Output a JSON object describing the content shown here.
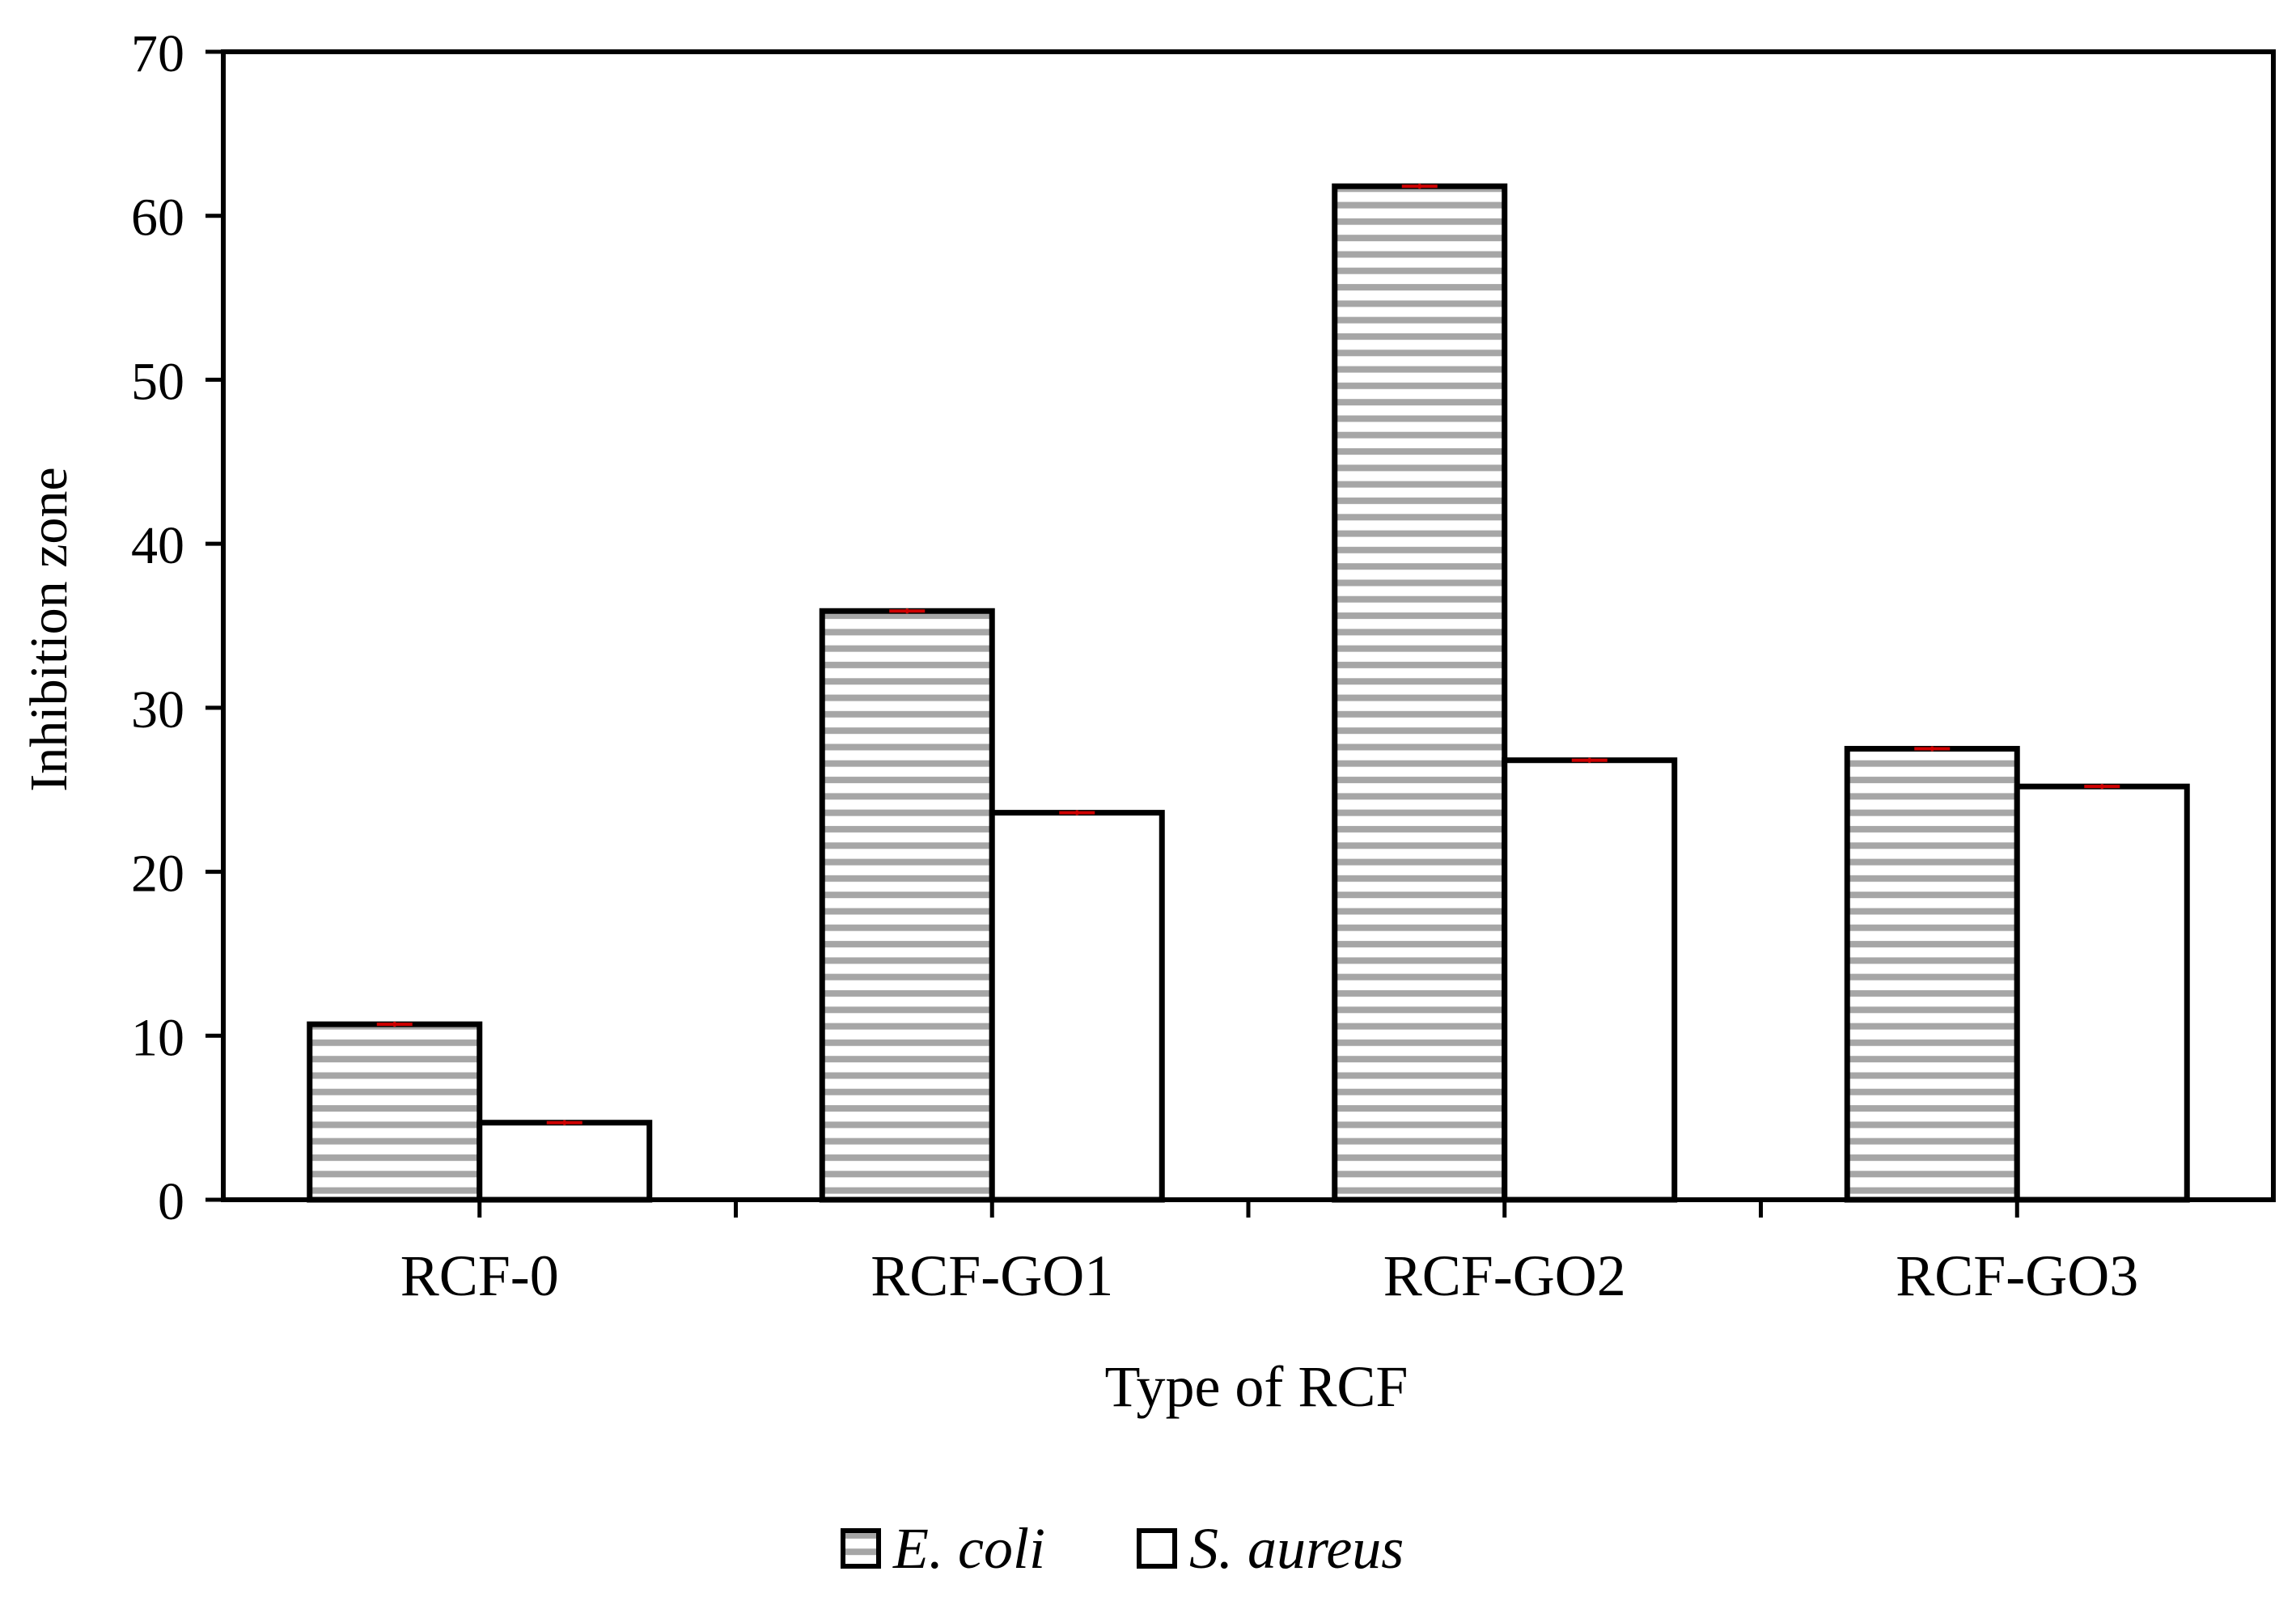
{
  "chart_data": {
    "type": "bar",
    "title": "",
    "xlabel": "Type of RCF",
    "ylabel": "Inhibition zone",
    "categories": [
      "RCF-0",
      "RCF-GO1",
      "RCF-GO2",
      "RCF-GO3"
    ],
    "series": [
      {
        "name": "E. coli",
        "values": [
          10.7,
          35.9,
          61.8,
          27.5
        ],
        "fill": "hatched-gray",
        "errors": [
          0.15,
          0.15,
          0.15,
          0.15
        ]
      },
      {
        "name": "S. aureus",
        "values": [
          4.7,
          23.6,
          26.8,
          25.2
        ],
        "fill": "white",
        "errors": [
          0.15,
          0.15,
          0.15,
          0.15
        ]
      }
    ],
    "ylim": [
      0,
      70
    ],
    "yticks": [
      "0",
      "10",
      "20",
      "30",
      "40",
      "50",
      "60",
      "70"
    ],
    "grid": false,
    "legend_position": "bottom-center"
  },
  "colors": {
    "axis": "#000000",
    "hatch_line": "#a6a6a6",
    "error_bar": "#d00000",
    "bar_outline": "#000000"
  }
}
